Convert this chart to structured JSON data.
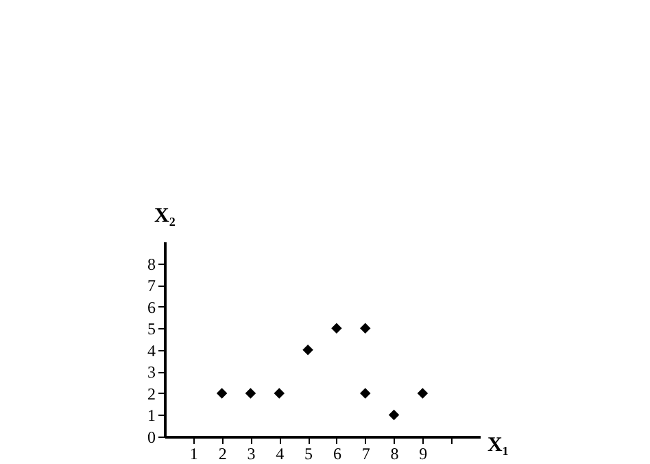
{
  "chart_data": {
    "type": "scatter",
    "xlabel": "X₁",
    "ylabel": "X₂",
    "x": [
      2,
      3,
      4,
      5,
      6,
      7,
      7,
      8,
      9
    ],
    "series": [
      {
        "color": "#000000",
        "values": [
          2,
          2,
          2,
          4,
          5,
          5,
          2,
          1,
          2
        ]
      }
    ],
    "xlim": [
      0,
      11
    ],
    "ylim": [
      0,
      9
    ],
    "xticks": [
      1,
      2,
      3,
      4,
      5,
      6,
      7,
      8,
      9,
      {
        "value": 10,
        "label": null
      }
    ],
    "yticks": [
      0,
      1,
      2,
      3,
      4,
      5,
      6,
      7,
      8
    ],
    "marker": "diamond",
    "grid": false
  }
}
